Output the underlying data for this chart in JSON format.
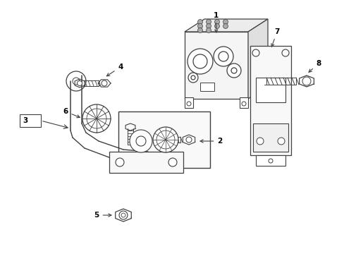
{
  "background_color": "#ffffff",
  "line_color": "#404040",
  "text_color": "#000000",
  "fig_width": 4.89,
  "fig_height": 3.6,
  "dpi": 100
}
